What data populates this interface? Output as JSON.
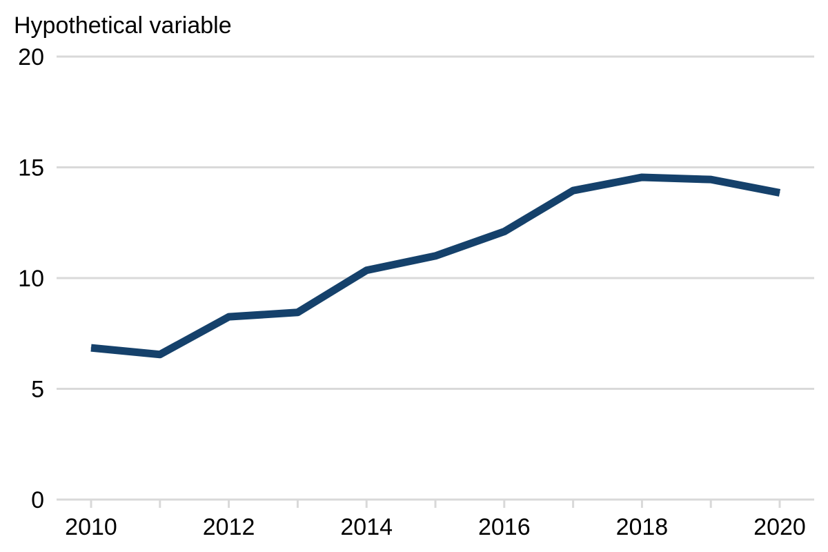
{
  "chart_data": {
    "type": "line",
    "ylabel": "Hypothetical variable",
    "x": [
      2010,
      2011,
      2012,
      2013,
      2014,
      2015,
      2016,
      2017,
      2018,
      2019,
      2020
    ],
    "series": [
      {
        "values": [
          6.85,
          6.55,
          8.25,
          8.45,
          10.35,
          11.0,
          12.1,
          13.95,
          14.55,
          14.45,
          13.85
        ]
      }
    ],
    "xlim": [
      2010,
      2020
    ],
    "ylim": [
      0,
      20
    ],
    "y_ticks": [
      0,
      5,
      10,
      15,
      20
    ],
    "x_tick_labels": [
      "2010",
      "2012",
      "2014",
      "2016",
      "2018",
      "2020"
    ],
    "y_tick_labels": [
      "0",
      "5",
      "10",
      "15",
      "20"
    ],
    "grid": "horizontal",
    "colors": {
      "line": "#15416b",
      "grid": "#d9d9d9",
      "axis": "#d9d9d9"
    }
  }
}
